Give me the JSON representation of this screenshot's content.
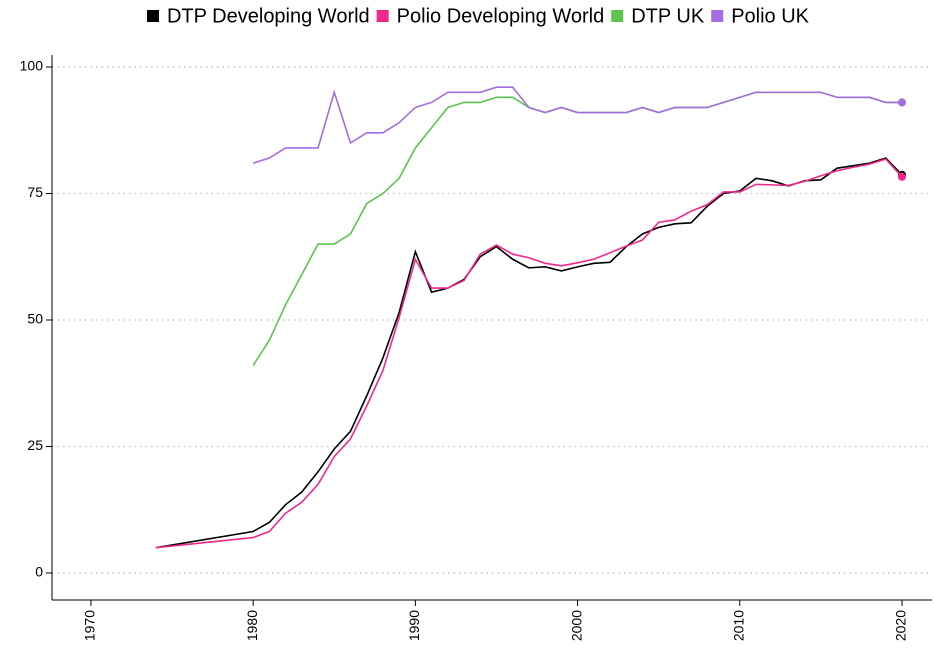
{
  "chart_data": {
    "type": "line",
    "x": [
      1974,
      1980,
      1981,
      1982,
      1983,
      1984,
      1985,
      1986,
      1987,
      1988,
      1989,
      1990,
      1991,
      1992,
      1993,
      1994,
      1995,
      1996,
      1997,
      1998,
      1999,
      2000,
      2001,
      2002,
      2003,
      2004,
      2005,
      2006,
      2007,
      2008,
      2009,
      2010,
      2011,
      2012,
      2013,
      2014,
      2015,
      2016,
      2017,
      2018,
      2019,
      2020
    ],
    "series": [
      {
        "name": "DTP Developing World",
        "color": "#000000",
        "values": [
          5,
          8.2,
          10,
          13.5,
          16,
          20,
          24.5,
          28,
          35,
          42.5,
          51.5,
          63.5,
          55.5,
          56.3,
          58,
          62.5,
          64.5,
          62,
          60.3,
          60.5,
          59.7,
          60.5,
          61.2,
          61.4,
          64.5,
          67,
          68.3,
          69,
          69.2,
          72.5,
          75,
          75.5,
          78,
          77.5,
          76.5,
          77.5,
          77.7,
          80,
          80.5,
          81,
          82,
          78.7
        ]
      },
      {
        "name": "Polio Developing World",
        "color": "#f0288c",
        "values": [
          5,
          7,
          8.2,
          11.8,
          14,
          17.5,
          23,
          26.5,
          33,
          40,
          50.5,
          62,
          56.3,
          56.3,
          57.8,
          63,
          64.8,
          63,
          62.3,
          61.2,
          60.7,
          61.3,
          62,
          63.3,
          64.6,
          65.8,
          69.3,
          69.8,
          71.5,
          72.8,
          75.3,
          75.3,
          76.8,
          76.7,
          76.6,
          77.4,
          78.5,
          79.5,
          80.2,
          80.8,
          81.8,
          78.3
        ]
      },
      {
        "name": "DTP UK",
        "color": "#5cc34f",
        "values": [
          null,
          41,
          46,
          53,
          59,
          65,
          65,
          67,
          73,
          75,
          78,
          84,
          88,
          92,
          93,
          93,
          94,
          94,
          92,
          91,
          92,
          91,
          91,
          91,
          91,
          92,
          91,
          92,
          92,
          92,
          93,
          94,
          95,
          95,
          95,
          95,
          95,
          94,
          94,
          94,
          93,
          93
        ]
      },
      {
        "name": "Polio UK",
        "color": "#a36ee0",
        "values": [
          null,
          81,
          82,
          84,
          84,
          84,
          95,
          85,
          87,
          87,
          89,
          92,
          93,
          95,
          95,
          95,
          96,
          96,
          92,
          91,
          92,
          91,
          91,
          91,
          91,
          92,
          91,
          92,
          92,
          92,
          93,
          94,
          95,
          95,
          95,
          95,
          95,
          94,
          94,
          94,
          93,
          93
        ]
      }
    ],
    "xlim": [
      1967.6,
      2021.85
    ],
    "xticks": [
      1970,
      1980,
      1990,
      2000,
      2010,
      2020
    ],
    "ylim": [
      -5.34,
      102.37
    ],
    "yticks": [
      0,
      25,
      50,
      75,
      100
    ],
    "grid": true,
    "legend": "top"
  }
}
